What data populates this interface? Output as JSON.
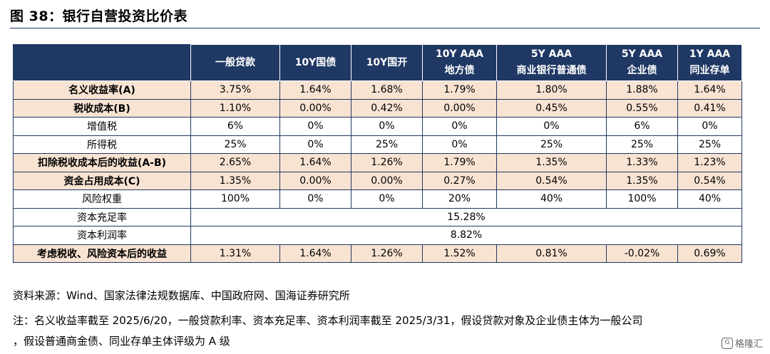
{
  "figure": {
    "title": "图 38：银行自营投资比价表",
    "source": "资料来源：Wind、国家法律法规数据库、中国政府网、国海证券研究所",
    "note_line1": "注：名义收益率截至 2025/6/20，一般贷款利率、资本充足率、资本利润率截至 2025/3/31，假设贷款对象及企业债主体为一般公司",
    "note_line2": "，假设普通商金债、同业存单主体评级为 A 级",
    "watermark": "格隆汇"
  },
  "table": {
    "headers": [
      {
        "line1": "",
        "line2": ""
      },
      {
        "line1": "一般贷款",
        "line2": ""
      },
      {
        "line1": "10Y国债",
        "line2": ""
      },
      {
        "line1": "10Y国开",
        "line2": ""
      },
      {
        "line1": "10Y AAA",
        "line2": "地方债"
      },
      {
        "line1": "5Y AAA",
        "line2": "商业银行普通债"
      },
      {
        "line1": "5Y AAA",
        "line2": "企业债"
      },
      {
        "line1": "1Y AAA",
        "line2": "同业存单"
      }
    ],
    "rows": [
      {
        "label": "名义收益率(A)",
        "values": [
          "3.75%",
          "1.64%",
          "1.68%",
          "1.79%",
          "1.80%",
          "1.88%",
          "1.64%"
        ]
      },
      {
        "label": "税收成本(B)",
        "values": [
          "1.10%",
          "0.00%",
          "0.42%",
          "0.00%",
          "0.45%",
          "0.55%",
          "0.41%"
        ]
      },
      {
        "label": "增值税",
        "values": [
          "6%",
          "0%",
          "0%",
          "0%",
          "0%",
          "6%",
          "0%"
        ]
      },
      {
        "label": "所得税",
        "values": [
          "25%",
          "0%",
          "25%",
          "0%",
          "25%",
          "25%",
          "25%"
        ]
      },
      {
        "label": "扣除税收成本后的收益(A-B)",
        "values": [
          "2.65%",
          "1.64%",
          "1.26%",
          "1.79%",
          "1.35%",
          "1.33%",
          "1.23%"
        ]
      },
      {
        "label": "资金占用成本(C)",
        "values": [
          "1.35%",
          "0.00%",
          "0.00%",
          "0.27%",
          "0.54%",
          "1.35%",
          "0.54%"
        ]
      },
      {
        "label": "风险权重",
        "values": [
          "100%",
          "0%",
          "0%",
          "20%",
          "40%",
          "100%",
          "40%"
        ]
      },
      {
        "label": "资本充足率",
        "merged": "15.28%"
      },
      {
        "label": "资本利润率",
        "merged": "8.82%"
      },
      {
        "label": "考虑税收、风险资本后的收益",
        "values": [
          "1.31%",
          "1.64%",
          "1.26%",
          "1.52%",
          "0.81%",
          "-0.02%",
          "0.69%"
        ]
      }
    ]
  }
}
